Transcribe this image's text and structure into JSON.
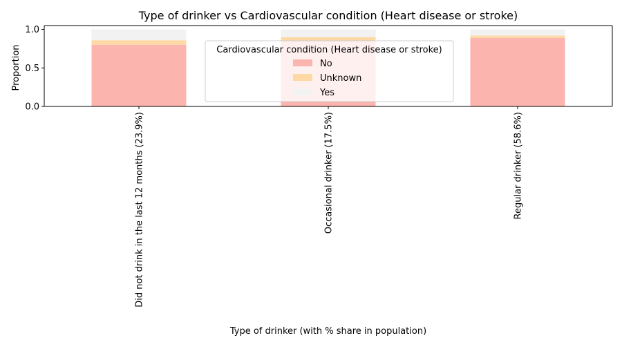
{
  "chart_data": {
    "type": "bar",
    "stacked": true,
    "title": "Type of drinker vs Cardiovascular condition (Heart disease or stroke)",
    "xlabel": "Type of drinker (with % share in population)",
    "ylabel": "Proportion",
    "ylim": [
      0,
      1.05
    ],
    "yticks": [
      "0.0",
      "0.5",
      "1.0"
    ],
    "ytick_values": [
      0,
      0.5,
      1.0
    ],
    "categories": [
      "Did not drink in the last 12 months (23.9%)",
      "Occasional drinker (17.5%)",
      "Regular drinker (58.6%)"
    ],
    "series": [
      {
        "name": "No",
        "color": "#fbb4ae",
        "values": [
          0.8,
          0.85,
          0.89
        ]
      },
      {
        "name": "Unknown",
        "color": "#fed9a6",
        "values": [
          0.06,
          0.05,
          0.03
        ]
      },
      {
        "name": "Yes",
        "color": "#f2f2f2",
        "values": [
          0.14,
          0.1,
          0.08
        ]
      }
    ],
    "legend": {
      "title": "Cardiovascular condition (Heart disease or stroke)",
      "placement": "upper-center",
      "overlaps_middle_bar": true
    },
    "grid": false
  }
}
